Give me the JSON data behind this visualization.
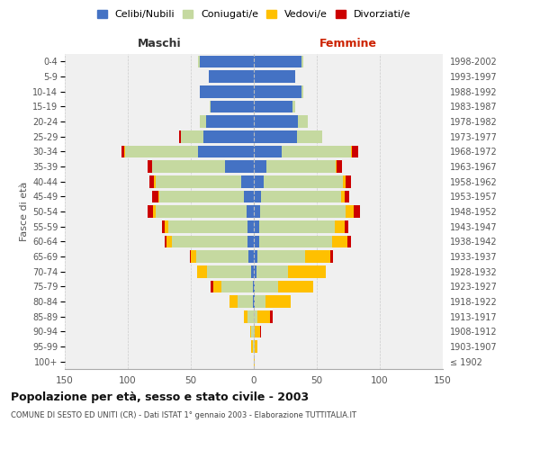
{
  "age_groups": [
    "100+",
    "95-99",
    "90-94",
    "85-89",
    "80-84",
    "75-79",
    "70-74",
    "65-69",
    "60-64",
    "55-59",
    "50-54",
    "45-49",
    "40-44",
    "35-39",
    "30-34",
    "25-29",
    "20-24",
    "15-19",
    "10-14",
    "5-9",
    "0-4"
  ],
  "birth_years": [
    "≤ 1902",
    "1903-1907",
    "1908-1912",
    "1913-1917",
    "1918-1922",
    "1923-1927",
    "1928-1932",
    "1933-1937",
    "1938-1942",
    "1943-1947",
    "1948-1952",
    "1953-1957",
    "1958-1962",
    "1963-1967",
    "1968-1972",
    "1973-1977",
    "1978-1982",
    "1983-1987",
    "1988-1992",
    "1993-1997",
    "1998-2002"
  ],
  "males": {
    "celibi": [
      0,
      0,
      0,
      0,
      1,
      1,
      2,
      4,
      5,
      5,
      6,
      8,
      10,
      23,
      44,
      40,
      38,
      34,
      43,
      36,
      43
    ],
    "coniugati": [
      0,
      1,
      2,
      5,
      12,
      25,
      35,
      42,
      60,
      63,
      72,
      67,
      68,
      58,
      58,
      18,
      5,
      1,
      0,
      0,
      1
    ],
    "vedovi": [
      0,
      1,
      1,
      3,
      6,
      6,
      8,
      4,
      4,
      3,
      2,
      1,
      1,
      0,
      1,
      0,
      0,
      0,
      0,
      0,
      0
    ],
    "divorziati": [
      0,
      0,
      0,
      0,
      0,
      2,
      0,
      1,
      2,
      2,
      4,
      5,
      4,
      3,
      2,
      1,
      0,
      0,
      0,
      0,
      0
    ]
  },
  "females": {
    "nubili": [
      0,
      0,
      0,
      0,
      1,
      1,
      2,
      3,
      4,
      4,
      5,
      6,
      8,
      10,
      22,
      34,
      35,
      31,
      38,
      33,
      38
    ],
    "coniugate": [
      0,
      1,
      1,
      3,
      8,
      18,
      25,
      38,
      58,
      60,
      68,
      63,
      63,
      55,
      55,
      20,
      8,
      2,
      1,
      0,
      1
    ],
    "vedove": [
      1,
      2,
      4,
      10,
      20,
      28,
      30,
      20,
      12,
      8,
      6,
      3,
      2,
      1,
      1,
      0,
      0,
      0,
      0,
      0,
      0
    ],
    "divorziate": [
      0,
      0,
      1,
      2,
      0,
      0,
      0,
      2,
      3,
      3,
      5,
      4,
      4,
      4,
      5,
      0,
      0,
      0,
      0,
      0,
      0
    ]
  },
  "colors": {
    "celibi": "#4472c4",
    "coniugati": "#c5d9a0",
    "vedovi": "#ffc000",
    "divorziati": "#cc0000"
  },
  "xlim": 150,
  "title": "Popolazione per età, sesso e stato civile - 2003",
  "subtitle": "COMUNE DI SESTO ED UNITI (CR) - Dati ISTAT 1° gennaio 2003 - Elaborazione TUTTITALIA.IT",
  "ylabel_left": "Fasce di età",
  "xlabel_left": "Maschi",
  "xlabel_right": "Femmine",
  "legend_labels": [
    "Celibi/Nubili",
    "Coniugati/e",
    "Vedovi/e",
    "Divorziati/e"
  ],
  "bg_color": "#f0f0f0",
  "grid_color": "#cccccc"
}
